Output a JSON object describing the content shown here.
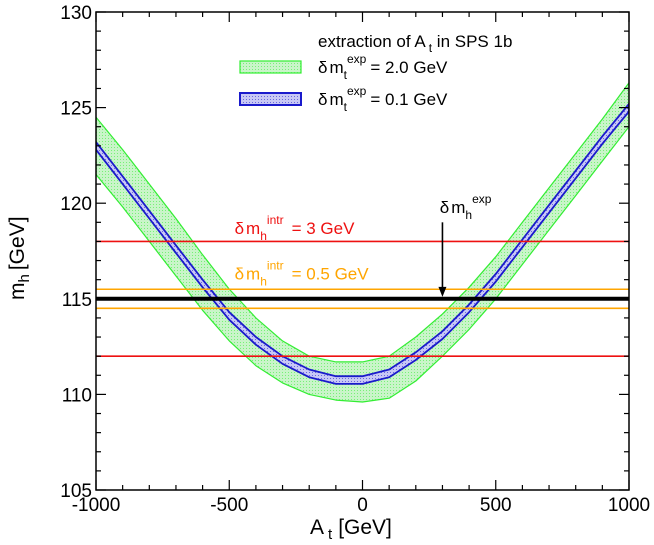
{
  "chart_data": {
    "type": "line",
    "xlabel": "A",
    "xlabel_sub": "t",
    "xlabel_unit": "[GeV]",
    "ylabel": "m",
    "ylabel_sub": "h",
    "ylabel_unit": "[GeV]",
    "xlim": [
      -1000,
      1000
    ],
    "ylim": [
      105,
      130
    ],
    "xticks": [
      -1000,
      -500,
      0,
      500,
      1000
    ],
    "xtick_labels": [
      "-1000",
      "-500",
      "0",
      "500",
      "1000"
    ],
    "yticks": [
      105,
      110,
      115,
      120,
      125,
      130
    ],
    "ytick_labels": [
      "105",
      "110",
      "115",
      "120",
      "125",
      "130"
    ],
    "grid": false,
    "legend_position": "top-right",
    "legend": {
      "title_prefix": "extraction of A",
      "title_sub": "t",
      "title_suffix": " in SPS 1b",
      "items": [
        {
          "delta": "δ",
          "m": "m",
          "sub": "t",
          "sup": "exp",
          "value": "= 2.0 GeV",
          "color": "#33ee33",
          "fill": "#c9f5c9"
        },
        {
          "delta": "δ",
          "m": "m",
          "sub": "t",
          "sup": "exp",
          "value": "= 0.1 GeV",
          "color": "#1a1acc",
          "fill": "#c8c8f5"
        }
      ]
    },
    "bands": [
      {
        "name": "δm_t^exp = 2.0 GeV",
        "color": "#33ee33",
        "fill": "#c9f5c9",
        "x": [
          -1000,
          -900,
          -800,
          -700,
          -600,
          -500,
          -400,
          -300,
          -200,
          -100,
          0,
          100,
          200,
          300,
          400,
          500,
          600,
          700,
          800,
          900,
          1000
        ],
        "upper": [
          124.5,
          122.8,
          121.0,
          119.2,
          117.3,
          115.5,
          114.0,
          112.8,
          112.0,
          111.7,
          111.7,
          112.0,
          113.0,
          114.2,
          115.6,
          117.2,
          119.0,
          120.8,
          122.6,
          124.4,
          126.3
        ],
        "lower": [
          121.5,
          119.8,
          118.0,
          116.2,
          114.4,
          112.8,
          111.5,
          110.6,
          110.0,
          109.7,
          109.6,
          109.8,
          110.7,
          112.0,
          113.4,
          115.0,
          116.8,
          118.6,
          120.4,
          122.2,
          124.0
        ]
      },
      {
        "name": "δm_t^exp = 0.1 GeV",
        "color": "#1a1acc",
        "fill": "#c8c8f5",
        "x": [
          -1000,
          -900,
          -800,
          -700,
          -600,
          -500,
          -400,
          -300,
          -200,
          -100,
          0,
          100,
          200,
          300,
          400,
          500,
          600,
          700,
          800,
          900,
          1000
        ],
        "upper": [
          123.2,
          121.4,
          119.6,
          117.8,
          116.0,
          114.3,
          113.0,
          112.0,
          111.3,
          110.95,
          110.95,
          111.3,
          112.2,
          113.3,
          114.7,
          116.3,
          118.1,
          119.9,
          121.7,
          123.5,
          125.2
        ],
        "lower": [
          122.8,
          121.0,
          119.2,
          117.4,
          115.6,
          113.9,
          112.6,
          111.6,
          110.9,
          110.55,
          110.55,
          110.9,
          111.8,
          112.9,
          114.3,
          115.9,
          117.7,
          119.5,
          121.3,
          123.1,
          124.8
        ]
      }
    ],
    "hlines": [
      {
        "y": 118.0,
        "color": "#ee1111",
        "width": 1.6
      },
      {
        "y": 112.0,
        "color": "#ee1111",
        "width": 1.6
      },
      {
        "y": 115.5,
        "color": "#ffa500",
        "width": 1.6
      },
      {
        "y": 114.5,
        "color": "#ffa500",
        "width": 1.6
      },
      {
        "y": 115.0,
        "color": "#000000",
        "width": 4
      }
    ],
    "annotations": [
      {
        "delta": "δ",
        "m": "m",
        "sub": "h",
        "sup": "intr",
        "value": "= 3 GeV",
        "color": "#ee1111",
        "x": -480,
        "y": 118.4
      },
      {
        "delta": "δ",
        "m": "m",
        "sub": "h",
        "sup": "intr",
        "value": "= 0.5 GeV",
        "color": "#ffa500",
        "x": -480,
        "y": 116.0
      },
      {
        "delta": "δ",
        "m": "m",
        "sub": "h",
        "sup": "exp",
        "value": "",
        "color": "#000000",
        "x": 290,
        "y": 119.5
      }
    ],
    "arrow": {
      "x": 300,
      "y_from": 119.0,
      "y_to": 115.1,
      "color": "#000000"
    }
  }
}
